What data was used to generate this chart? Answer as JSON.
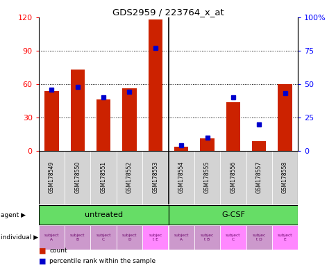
{
  "title": "GDS2959 / 223764_x_at",
  "samples": [
    "GSM178549",
    "GSM178550",
    "GSM178551",
    "GSM178552",
    "GSM178553",
    "GSM178554",
    "GSM178555",
    "GSM178556",
    "GSM178557",
    "GSM178558"
  ],
  "counts": [
    54,
    73,
    46,
    56,
    118,
    4,
    11,
    44,
    9,
    60
  ],
  "percentiles": [
    46,
    48,
    40,
    44,
    77,
    4,
    10,
    40,
    20,
    43
  ],
  "ylim_left": [
    0,
    120
  ],
  "ylim_right": [
    0,
    100
  ],
  "yticks_left": [
    0,
    30,
    60,
    90,
    120
  ],
  "yticks_right": [
    0,
    25,
    50,
    75,
    100
  ],
  "ytick_labels_left": [
    "0",
    "30",
    "60",
    "90",
    "120"
  ],
  "ytick_labels_right": [
    "0",
    "25",
    "50",
    "75",
    "100%"
  ],
  "bar_color": "#CC2200",
  "percentile_color": "#0000CC",
  "sample_bg_color": "#D3D3D3",
  "green_color": "#66DD66",
  "individual_colors": [
    "#CC99CC",
    "#CC99CC",
    "#CC99CC",
    "#CC99CC",
    "#FF88FF",
    "#CC99CC",
    "#CC99CC",
    "#FF88FF",
    "#CC99CC",
    "#FF88FF"
  ],
  "indiv_labels": [
    "subject\nA",
    "subject\nB",
    "subject\nC",
    "subject\nD",
    "subjec\nt E",
    "subject\nA",
    "subjec\nt B",
    "subject\nC",
    "subjec\nt D",
    "subject\nE"
  ],
  "bar_width": 0.55
}
